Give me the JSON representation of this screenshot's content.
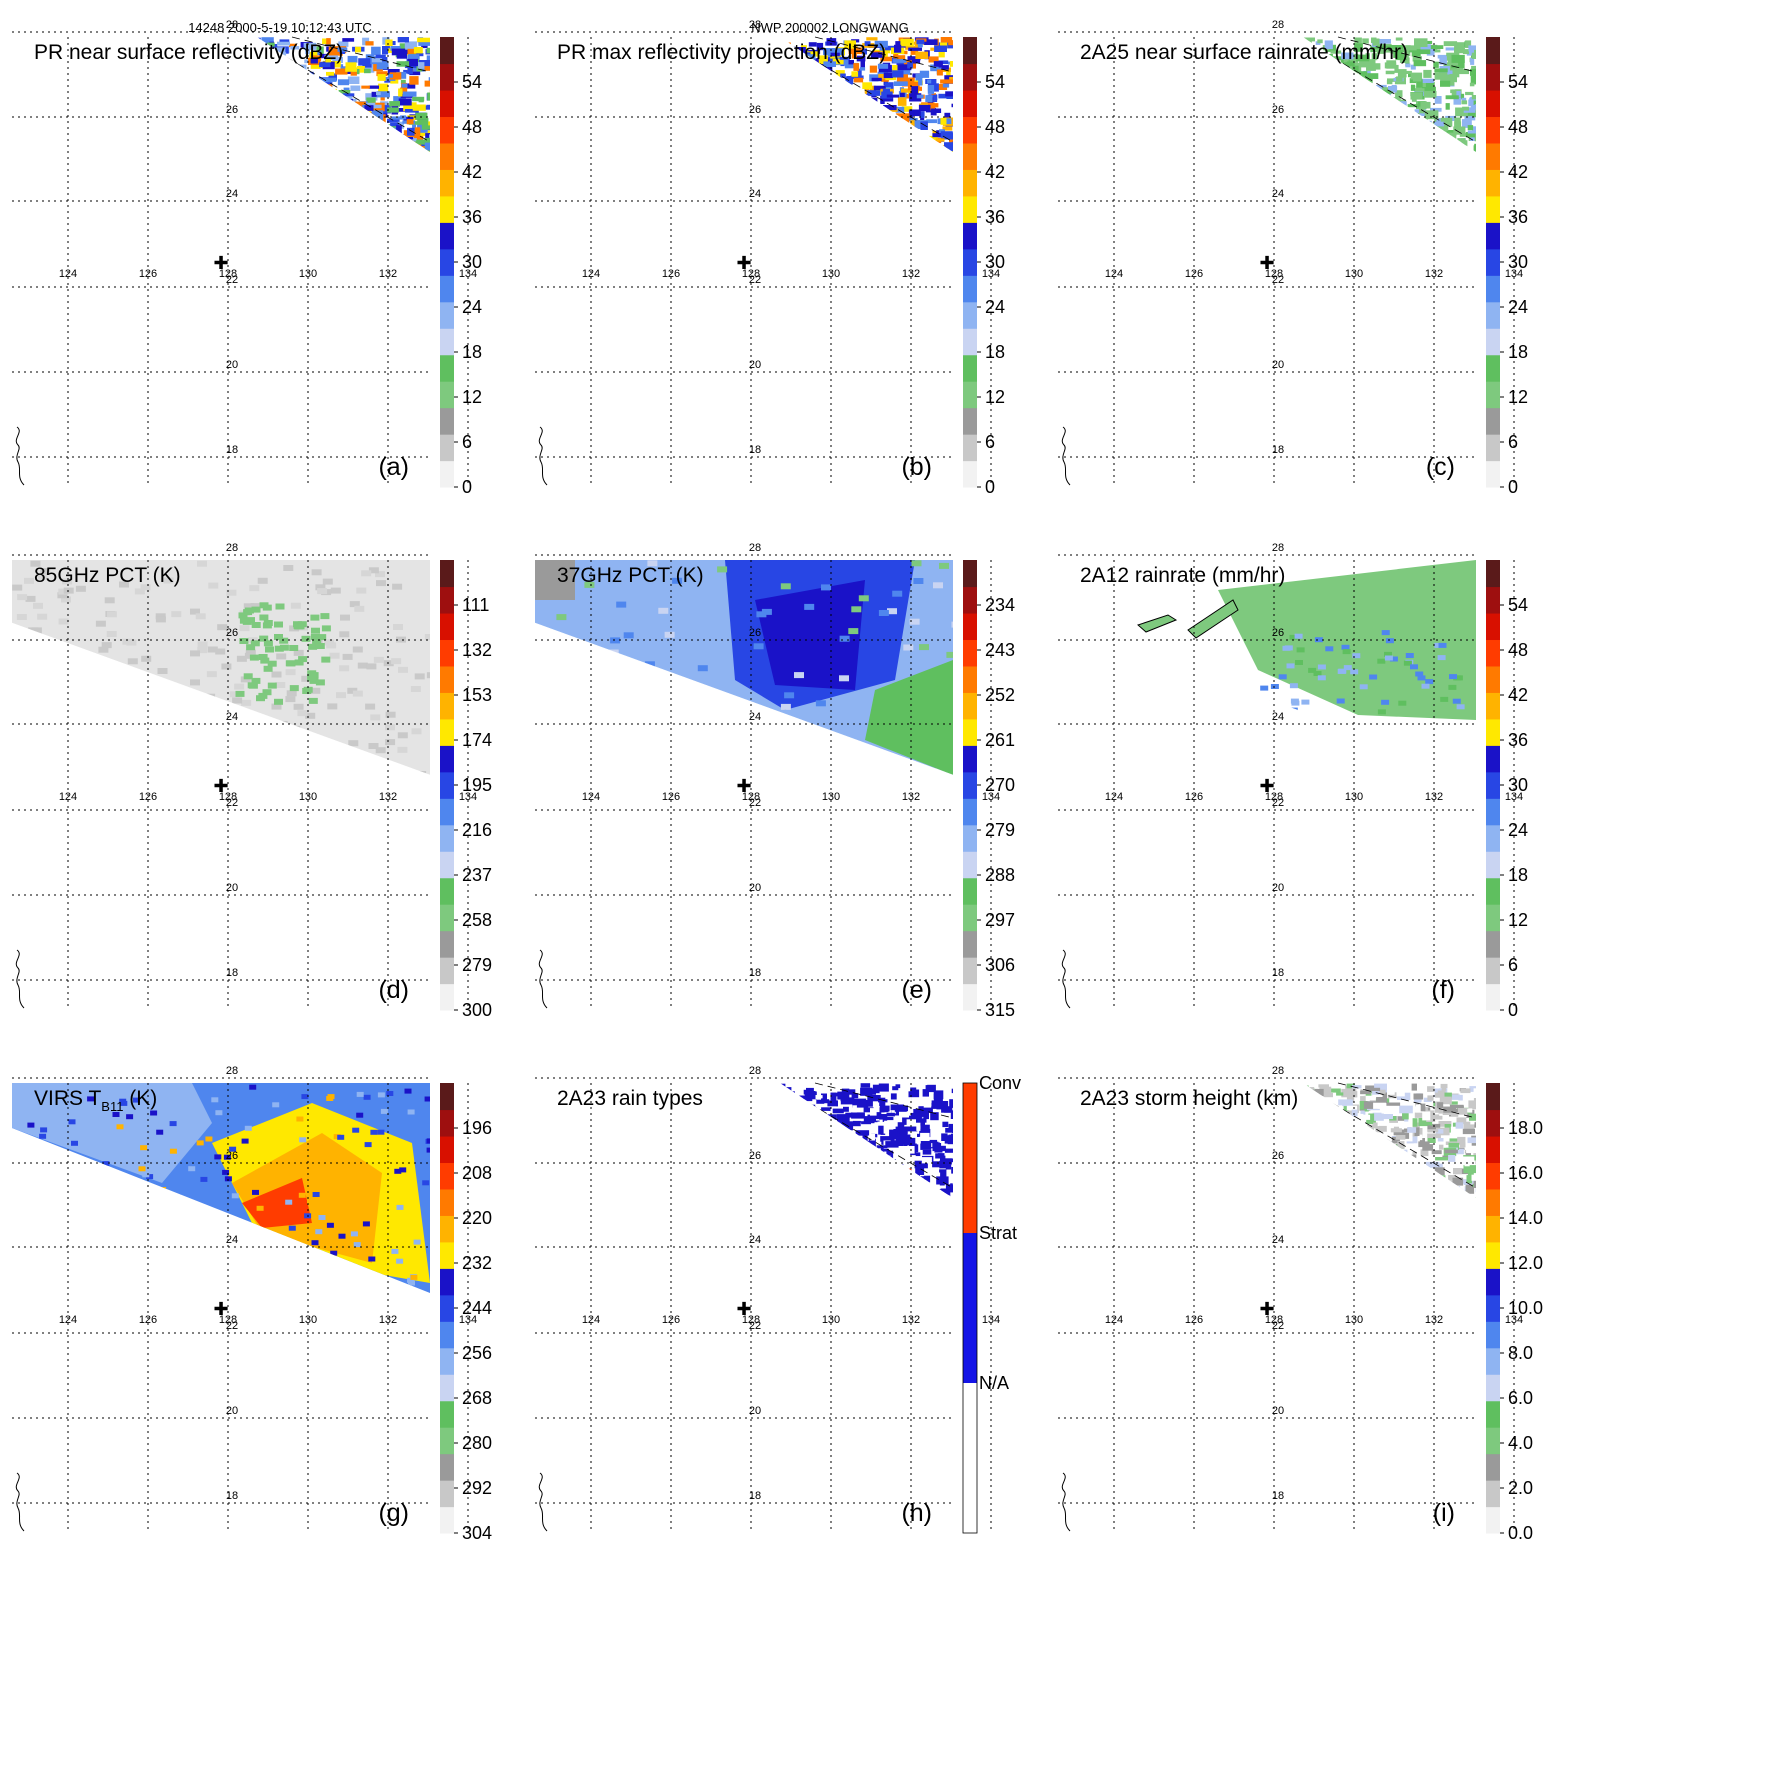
{
  "header": {
    "orbit_time": "14248 2000-5-19 10:12:43 UTC",
    "case_name": "NWP 200002 LONGWANG"
  },
  "colors": {
    "scale": [
      "#f2f2f2",
      "#c8c8c8",
      "#9a9a9a",
      "#7ec97e",
      "#5fbf5f",
      "#c9d4f2",
      "#8fb4f2",
      "#4f86ee",
      "#2846e4",
      "#1a12c8",
      "#ffe800",
      "#ffb300",
      "#ff7a00",
      "#ff3c00",
      "#d81000",
      "#9e0f0f",
      "#5a1a1a"
    ],
    "rain_type": {
      "none": "#ffffff",
      "strat": "#1414e6",
      "conv": "#ff3c00"
    }
  },
  "map": {
    "lon_ticks": [
      "124",
      "126",
      "128",
      "130",
      "132",
      "134"
    ],
    "lat_ticks": [
      "28",
      "26",
      "24",
      "22",
      "20",
      "18"
    ],
    "storm_center_symbol": "✚"
  },
  "panels": [
    {
      "id": "a",
      "title": "PR near surface reflectivity (dBZ)",
      "label": "(a)",
      "colorbar": [
        "0",
        "6",
        "12",
        "18",
        "24",
        "30",
        "36",
        "42",
        "48",
        "54"
      ],
      "field": "pr_swath"
    },
    {
      "id": "b",
      "title": "PR max reflectivity projection (dBZ)",
      "label": "(b)",
      "colorbar": [
        "0",
        "6",
        "12",
        "18",
        "24",
        "30",
        "36",
        "42",
        "48",
        "54"
      ],
      "field": "pr_swath"
    },
    {
      "id": "c",
      "title": "2A25 near surface rainrate (mm/hr)",
      "label": "(c)",
      "colorbar": [
        "0",
        "6",
        "12",
        "18",
        "24",
        "30",
        "36",
        "42",
        "48",
        "54"
      ],
      "field": "pr_swath"
    },
    {
      "id": "d",
      "title": "85GHz PCT (K)",
      "label": "(d)",
      "colorbar": [
        "300",
        "279",
        "258",
        "237",
        "216",
        "195",
        "174",
        "153",
        "132",
        "111"
      ],
      "field": "tmi_swath"
    },
    {
      "id": "e",
      "title": "37GHz PCT (K)",
      "label": "(e)",
      "colorbar": [
        "315",
        "306",
        "297",
        "288",
        "279",
        "270",
        "261",
        "252",
        "243",
        "234"
      ],
      "field": "tmi_swath"
    },
    {
      "id": "f",
      "title": "2A12 rainrate (mm/hr)",
      "label": "(f)",
      "colorbar": [
        "0",
        "6",
        "12",
        "18",
        "24",
        "30",
        "36",
        "42",
        "48",
        "54"
      ],
      "field": "tmi_swath"
    },
    {
      "id": "g",
      "title": "VIRS T",
      "title_sub": "B11",
      "title_tail": " (K)",
      "label": "(g)",
      "colorbar": [
        "304",
        "292",
        "280",
        "268",
        "256",
        "244",
        "232",
        "220",
        "208",
        "196"
      ],
      "field": "virs_swath"
    },
    {
      "id": "h",
      "title": "2A23 rain types",
      "label": "(h)",
      "colorbar": [
        "N/A",
        "Strat",
        "Conv"
      ],
      "field": "pr_swath"
    },
    {
      "id": "i",
      "title": "2A23 storm height (km)",
      "label": "(i)",
      "colorbar": [
        "0.0",
        "2.0",
        "4.0",
        "6.0",
        "8.0",
        "10.0",
        "12.0",
        "14.0",
        "16.0",
        "18.0"
      ],
      "field": "pr_swath"
    }
  ]
}
